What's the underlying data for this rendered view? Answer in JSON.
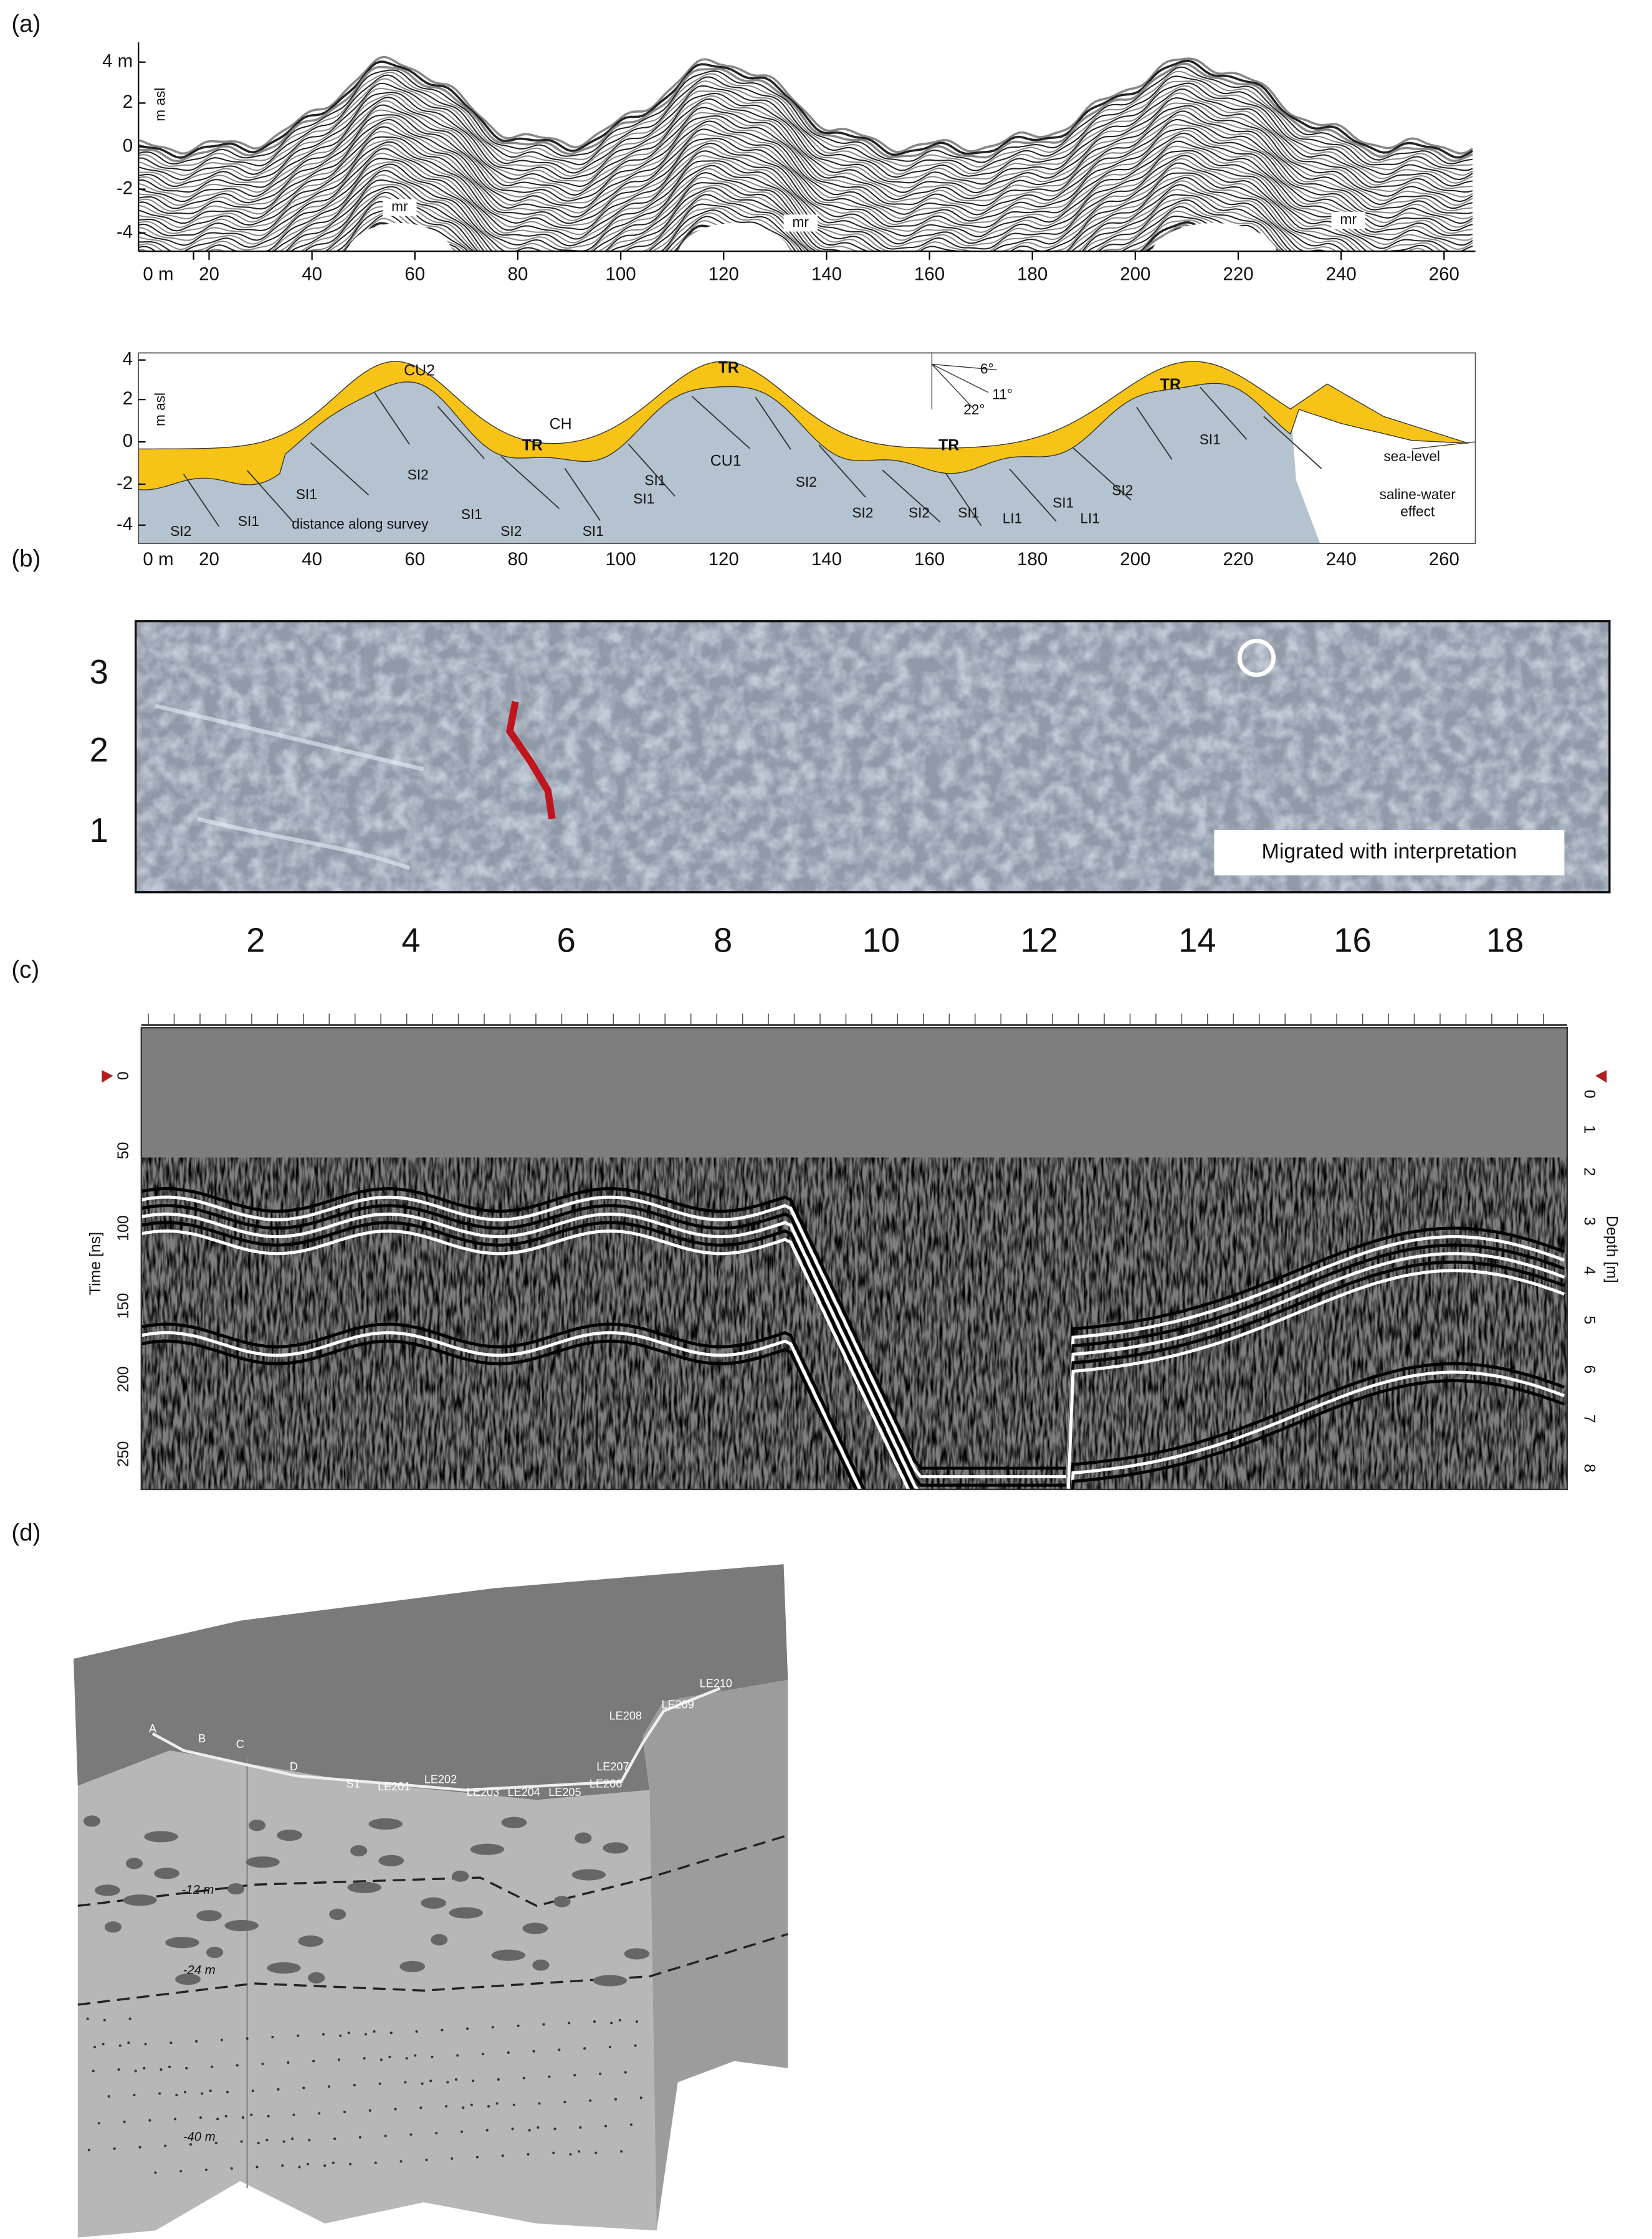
{
  "panels": {
    "a": {
      "label": "(a)",
      "top": {
        "yticks": [
          "4 m",
          "2",
          "0",
          "-2",
          "-4"
        ],
        "yaxis_label": "m asl",
        "xticks": [
          "0 m",
          "20",
          "40",
          "60",
          "80",
          "100",
          "120",
          "140",
          "160",
          "180",
          "200",
          "220",
          "240",
          "260"
        ],
        "annotations": [
          "mr",
          "mr",
          "mr"
        ]
      },
      "bottom": {
        "yticks": [
          "4",
          "2",
          "0",
          "-2",
          "-4"
        ],
        "yaxis_label": "m asl",
        "xticks": [
          "0 m",
          "20",
          "40",
          "60",
          "80",
          "100",
          "120",
          "140",
          "160",
          "180",
          "200",
          "220",
          "240",
          "260"
        ],
        "annotations": [
          "CU2",
          "CH",
          "TR",
          "TR",
          "CU1",
          "TR",
          "TR",
          "SI2",
          "SI1",
          "SI2",
          "SI1",
          "SI1",
          "SI2",
          "SI1",
          "SI1",
          "SI1",
          "SI2",
          "SI2",
          "SI2",
          "SI1",
          "LI1",
          "SI1",
          "LI1",
          "SI2",
          "SI1",
          "distance along survey",
          "sea-level",
          "saline-water",
          "effect",
          "6°",
          "11°",
          "22°"
        ]
      }
    },
    "b": {
      "label": "(b)",
      "yticks": [
        "3",
        "2",
        "1"
      ],
      "xticks": [
        "2",
        "4",
        "6",
        "8",
        "10",
        "12",
        "14",
        "16",
        "18"
      ],
      "caption": "Migrated with interpretation"
    },
    "c": {
      "label": "(c)",
      "left_ticks": [
        "0",
        "50",
        "100",
        "150",
        "200",
        "250"
      ],
      "left_label": "Time [ns]",
      "right_ticks": [
        "0",
        "1",
        "2",
        "3",
        "4",
        "5",
        "6",
        "7",
        "8"
      ],
      "right_label": "Depth [m]"
    },
    "d": {
      "label": "(d)",
      "stations": [
        "A",
        "B",
        "C",
        "D",
        "S1",
        "LE201",
        "LE202",
        "LE203",
        "LE204",
        "LE205",
        "LE206",
        "LE207",
        "LE208",
        "LE209",
        "LE210"
      ],
      "depths": [
        "-12 m",
        "-24 m",
        "-40 m"
      ]
    }
  }
}
